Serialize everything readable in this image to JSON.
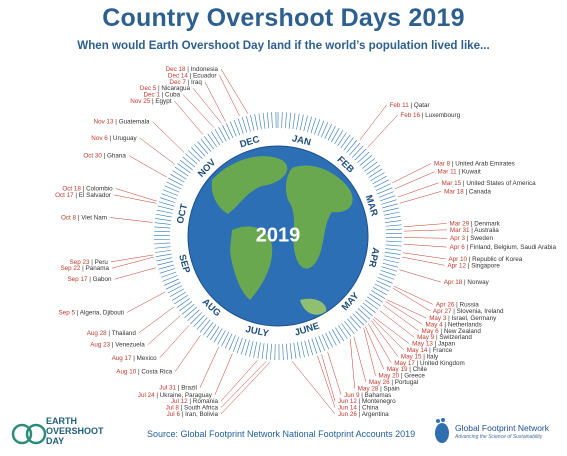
{
  "title": "Country Overshoot Days 2019",
  "subtitle": "When would Earth Overshoot Day land if the world’s population lived like...",
  "year": "2019",
  "months": [
    "JAN",
    "FEB",
    "MAR",
    "APR",
    "MAY",
    "JUNE",
    "JULY",
    "AUG",
    "SEP",
    "OCT",
    "NOV",
    "DEC"
  ],
  "entries": [
    {
      "date": "Dec 18",
      "country": "Indonesia"
    },
    {
      "date": "Dec 14",
      "country": "Ecuador"
    },
    {
      "date": "Dec 7",
      "country": "Iraq"
    },
    {
      "date": "Dec 5",
      "country": "Nicaragua"
    },
    {
      "date": "Dec 1",
      "country": "Cuba"
    },
    {
      "date": "Nov 25",
      "country": "Egypt"
    },
    {
      "date": "Nov 13",
      "country": "Guatemala"
    },
    {
      "date": "Nov 6",
      "country": "Uruguay"
    },
    {
      "date": "Oct 30",
      "country": "Ghana"
    },
    {
      "date": "Oct 18",
      "country": "Colombio"
    },
    {
      "date": "Oct 17",
      "country": "El Salvador"
    },
    {
      "date": "Oct 8",
      "country": "Viet Nam"
    },
    {
      "date": "Sep 23",
      "country": "Peru"
    },
    {
      "date": "Sep 22",
      "country": "Panama"
    },
    {
      "date": "Sep 17",
      "country": "Gabon"
    },
    {
      "date": "Sep 5",
      "country": "Algeria, Djibouti"
    },
    {
      "date": "Aug 28",
      "country": "Thailand"
    },
    {
      "date": "Aug 23",
      "country": "Venezuela"
    },
    {
      "date": "Aug 17",
      "country": "Mexico"
    },
    {
      "date": "Aug 10",
      "country": "Costa Rica"
    },
    {
      "date": "Jul 31",
      "country": "Brazil"
    },
    {
      "date": "Jul 24",
      "country": "Ukraine, Paraguay"
    },
    {
      "date": "Jul 12",
      "country": "Romania"
    },
    {
      "date": "Jul 8",
      "country": "South Africa"
    },
    {
      "date": "Jul 6",
      "country": "Iran, Bolivia"
    },
    {
      "date": "Jun 26",
      "country": "Argentina"
    },
    {
      "date": "Jun 14",
      "country": "China"
    },
    {
      "date": "Jun 12",
      "country": "Montenegro"
    },
    {
      "date": "Jun 9",
      "country": "Bahamas"
    },
    {
      "date": "May 28",
      "country": "Spain"
    },
    {
      "date": "May 26",
      "country": "Portugal"
    },
    {
      "date": "May 20",
      "country": "Greece"
    },
    {
      "date": "May 19",
      "country": "Chile"
    },
    {
      "date": "May 17",
      "country": "United Kingdom"
    },
    {
      "date": "May 15",
      "country": "Italy"
    },
    {
      "date": "May 14",
      "country": "France"
    },
    {
      "date": "May 13",
      "country": "Japan"
    },
    {
      "date": "May 9",
      "country": "Switzerland"
    },
    {
      "date": "May 6",
      "country": "New Zealand"
    },
    {
      "date": "May 4",
      "country": "Netherlands"
    },
    {
      "date": "May 3",
      "country": "Israel, Germany"
    },
    {
      "date": "Apr 27",
      "country": "Slovenia, Ireland"
    },
    {
      "date": "Apr 26",
      "country": "Russia"
    },
    {
      "date": "Apr 18",
      "country": "Norway"
    },
    {
      "date": "Apr 12",
      "country": "Singapore"
    },
    {
      "date": "Apr 10",
      "country": "Republic of Korea"
    },
    {
      "date": "Apr 6",
      "country": "Finland, Belgium, Saudi Arabia"
    },
    {
      "date": "Apr 3",
      "country": "Sweden"
    },
    {
      "date": "Mar 31",
      "country": "Australia"
    },
    {
      "date": "Mar 29",
      "country": "Denmark"
    },
    {
      "date": "Mar 18",
      "country": "Canada"
    },
    {
      "date": "Mar 15",
      "country": "United States of America"
    },
    {
      "date": "Mar 11",
      "country": "Kuwait"
    },
    {
      "date": "Mar 8",
      "country": "United Arab Emirates"
    },
    {
      "date": "Feb 16",
      "country": "Luxembourg"
    },
    {
      "date": "Feb 11",
      "country": "Qatar"
    }
  ],
  "logo": {
    "line1": "EARTH",
    "line2": "OVERSHOOT",
    "line3": "DAY"
  },
  "source": "Source: Global Footprint Network National Footprint Accounts 2019",
  "gfn": {
    "name": "Global Footprint Network",
    "tagline": "Advancing the Science of Sustainability"
  },
  "colors": {
    "title": "#2d5f8f",
    "dates": "#c0392b",
    "ring": "#2e75b6",
    "ocean": "#2d6fb5",
    "land": "#6aa84f"
  }
}
